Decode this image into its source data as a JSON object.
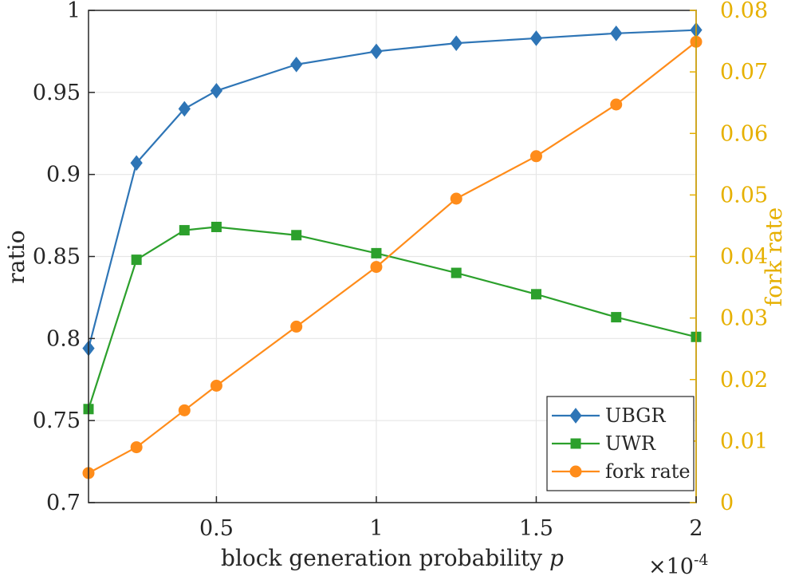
{
  "chart_data": {
    "type": "line",
    "title": "",
    "xlabel": "block generation probability",
    "xlabel_var": "p",
    "x_multiplier": "×10",
    "x_multiplier_exp": "-4",
    "x_scale_factor": 0.0001,
    "xlim": [
      0.1,
      2.0
    ],
    "xticks": [
      0.5,
      1,
      1.5,
      2
    ],
    "xtick_labels": [
      "0.5",
      "1",
      "1.5",
      "2"
    ],
    "ylabel_left": "ratio",
    "ylim_left": [
      0.7,
      1.0
    ],
    "yticks_left": [
      0.7,
      0.75,
      0.8,
      0.85,
      0.9,
      0.95,
      1.0
    ],
    "ytick_labels_left": [
      "0.7",
      "0.75",
      "0.8",
      "0.85",
      "0.9",
      "0.95",
      "1"
    ],
    "ylabel_right": "fork rate",
    "ylim_right": [
      0,
      0.08
    ],
    "yticks_right": [
      0,
      0.01,
      0.02,
      0.03,
      0.04,
      0.05,
      0.06,
      0.07,
      0.08
    ],
    "ytick_labels_right": [
      "0",
      "0.01",
      "0.02",
      "0.03",
      "0.04",
      "0.05",
      "0.06",
      "0.07",
      "0.08"
    ],
    "grid": true,
    "legend_position": "bottom-right",
    "x": [
      0.1,
      0.25,
      0.4,
      0.5,
      0.75,
      1.0,
      1.25,
      1.5,
      1.75,
      2.0
    ],
    "series": [
      {
        "name": "UBGR",
        "axis": "left",
        "marker": "diamond",
        "color": "#2e75b6",
        "values": [
          0.794,
          0.907,
          0.94,
          0.951,
          0.967,
          0.975,
          0.98,
          0.983,
          0.986,
          0.988
        ]
      },
      {
        "name": "UWR",
        "axis": "left",
        "marker": "square",
        "color": "#2ca02c",
        "values": [
          0.757,
          0.848,
          0.866,
          0.868,
          0.863,
          0.852,
          0.84,
          0.827,
          0.813,
          0.801
        ]
      },
      {
        "name": "fork rate",
        "axis": "right",
        "marker": "circle",
        "color": "#ff8c1a",
        "values": [
          0.0048,
          0.009,
          0.015,
          0.019,
          0.0286,
          0.0383,
          0.0494,
          0.0563,
          0.0647,
          0.0749
        ]
      }
    ],
    "colors": {
      "left_axis": "#262626",
      "right_axis": "#e6b000",
      "grid": "#e6e6e6"
    }
  }
}
